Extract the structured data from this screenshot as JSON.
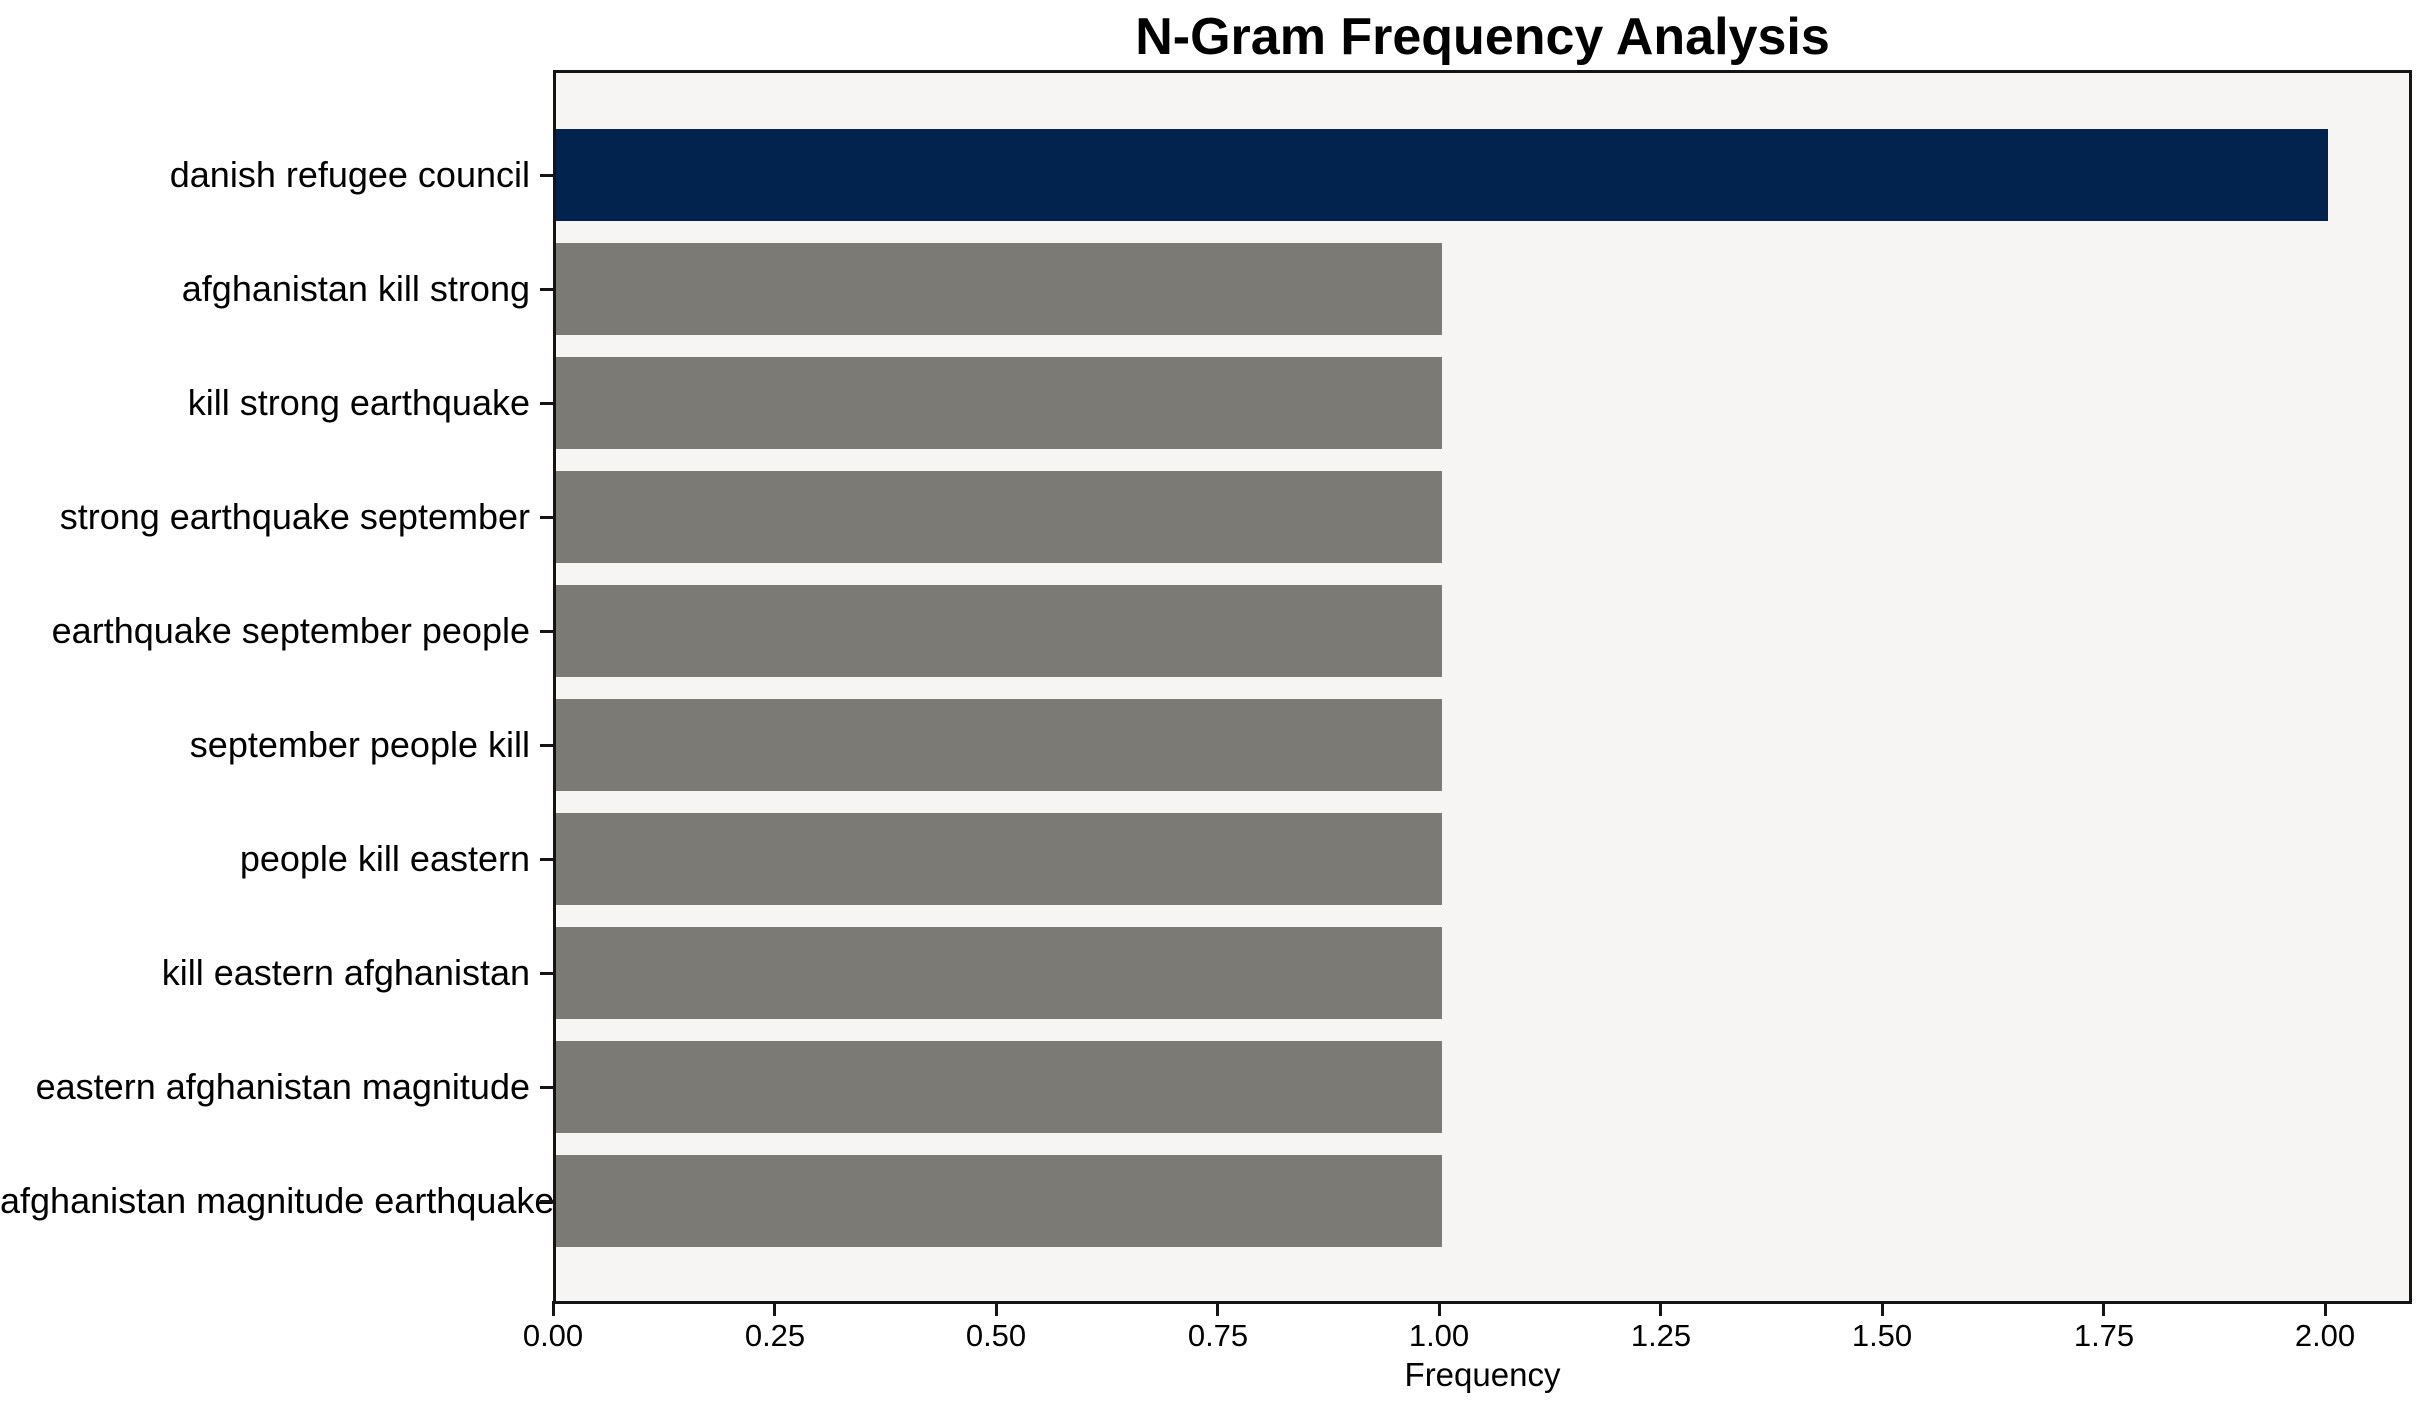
{
  "title": "N-Gram Frequency Analysis",
  "chart_data": {
    "type": "bar",
    "orientation": "horizontal",
    "title": "N-Gram Frequency Analysis",
    "xlabel": "Frequency",
    "ylabel": "",
    "categories": [
      "danish refugee council",
      "afghanistan kill strong",
      "kill strong earthquake",
      "strong earthquake september",
      "earthquake september people",
      "september people kill",
      "people kill eastern",
      "kill eastern afghanistan",
      "eastern afghanistan magnitude",
      "afghanistan magnitude earthquake"
    ],
    "values": [
      2,
      1,
      1,
      1,
      1,
      1,
      1,
      1,
      1,
      1
    ],
    "bar_colors": [
      "#02234d",
      "#7c7a75",
      "#7c7a75",
      "#7c7a75",
      "#7c7a75",
      "#7c7a75",
      "#7c7a75",
      "#7c7a75",
      "#7c7a75",
      "#7c7a75"
    ],
    "xlim": [
      0,
      2.1
    ],
    "x_ticks": [
      0,
      0.25,
      0.5,
      0.75,
      1,
      1.25,
      1.5,
      1.75,
      2
    ],
    "x_tick_labels": [
      "0.00",
      "0.25",
      "0.50",
      "0.75",
      "1.00",
      "1.25",
      "1.50",
      "1.75",
      "2.00"
    ],
    "grid": "off",
    "legend": "none"
  },
  "colors": {
    "highlight_bar": "#02234d",
    "default_bar": "#7c7a75",
    "plot_background": "#f6f5f3",
    "axis": "#141414",
    "text": "#000000",
    "figure_background": "#ffffff"
  }
}
